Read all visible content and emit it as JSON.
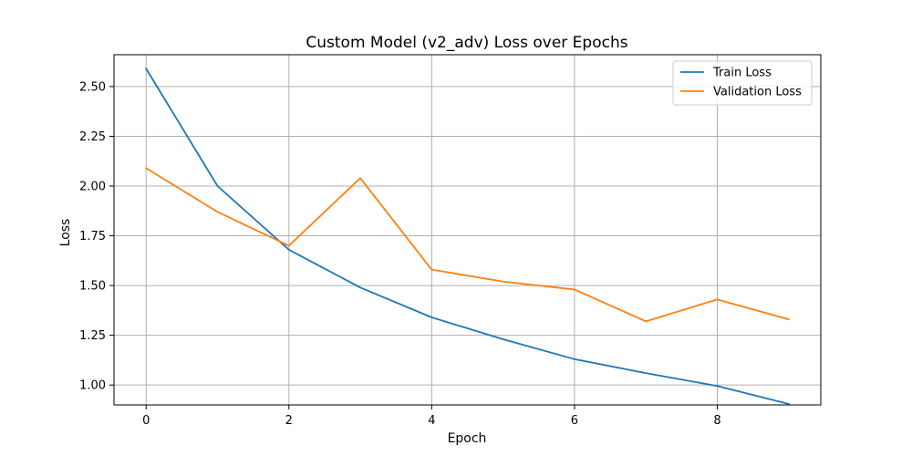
{
  "chart_data": {
    "type": "line",
    "title": "Custom Model (v2_adv) Loss over Epochs",
    "xlabel": "Epoch",
    "ylabel": "Loss",
    "x": [
      0,
      1,
      2,
      3,
      4,
      5,
      6,
      7,
      8,
      9
    ],
    "xlim": [
      -0.45,
      9.45
    ],
    "ylim": [
      0.9,
      2.66
    ],
    "xticks": [
      0,
      2,
      4,
      6,
      8
    ],
    "yticks": [
      1.0,
      1.25,
      1.5,
      1.75,
      2.0,
      2.25,
      2.5
    ],
    "xtick_labels": [
      "0",
      "2",
      "4",
      "6",
      "8"
    ],
    "ytick_labels": [
      "1.00",
      "1.25",
      "1.50",
      "1.75",
      "2.00",
      "2.25",
      "2.50"
    ],
    "grid": true,
    "legend_position": "top-right",
    "series": [
      {
        "name": "Train Loss",
        "color": "#1f77b4",
        "values": [
          2.59,
          2.0,
          1.68,
          1.49,
          1.34,
          1.23,
          1.13,
          1.06,
          0.995,
          0.905
        ]
      },
      {
        "name": "Validation Loss",
        "color": "#ff7f0e",
        "values": [
          2.09,
          1.87,
          1.7,
          2.04,
          1.58,
          1.52,
          1.48,
          1.32,
          1.43,
          1.33
        ]
      }
    ]
  }
}
